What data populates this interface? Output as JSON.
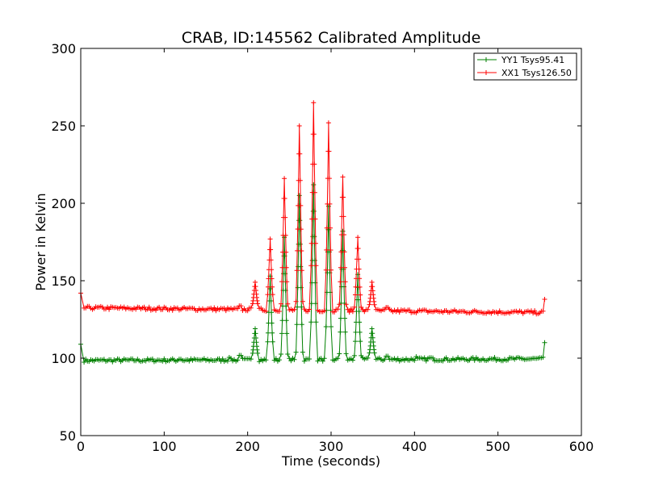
{
  "chart_data": {
    "type": "line",
    "title": "CRAB, ID:145562 Calibrated Amplitude",
    "xlabel": "Time (seconds)",
    "ylabel": "Power in Kelvin",
    "xlim": [
      0,
      600
    ],
    "ylim": [
      50,
      300
    ],
    "xticks": [
      0,
      100,
      200,
      300,
      400,
      500,
      600
    ],
    "yticks": [
      50,
      100,
      150,
      200,
      250,
      300
    ],
    "grid": false,
    "legend_position": "top-right",
    "series": [
      {
        "name": "YY1 Tsys95.41",
        "color": "#008000",
        "marker": "+",
        "x_start": 0,
        "x_end": 556,
        "x_step": 2,
        "baseline": 98.5,
        "baseline_end": 99.5,
        "edge_values": {
          "start": 109,
          "end": 110
        },
        "bumps": [
          {
            "x": 119,
            "value": 100.5
          },
          {
            "x": 178,
            "value": 100.5
          },
          {
            "x": 191,
            "value": 103
          },
          {
            "x": 367,
            "value": 102.5
          },
          {
            "x": 402,
            "value": 101
          },
          {
            "x": 419,
            "value": 101.5
          }
        ],
        "pulses": [
          {
            "x": 209,
            "value": 119
          },
          {
            "x": 227,
            "value": 153
          },
          {
            "x": 244,
            "value": 178
          },
          {
            "x": 262,
            "value": 205
          },
          {
            "x": 279,
            "value": 212
          },
          {
            "x": 297,
            "value": 198
          },
          {
            "x": 314,
            "value": 182
          },
          {
            "x": 332,
            "value": 154
          },
          {
            "x": 349,
            "value": 119
          }
        ]
      },
      {
        "name": "XX1 Tsys126.50",
        "color": "#ff0000",
        "marker": "+",
        "x_start": 0,
        "x_end": 556,
        "x_step": 2,
        "baseline": 132.5,
        "baseline_end": 129.5,
        "edge_values": {
          "start": 142,
          "end": 138
        },
        "bumps": [
          {
            "x": 191,
            "value": 135
          },
          {
            "x": 367,
            "value": 134
          }
        ],
        "pulses": [
          {
            "x": 209,
            "value": 149
          },
          {
            "x": 227,
            "value": 177
          },
          {
            "x": 244,
            "value": 216
          },
          {
            "x": 262,
            "value": 250
          },
          {
            "x": 279,
            "value": 265
          },
          {
            "x": 297,
            "value": 252
          },
          {
            "x": 314,
            "value": 217
          },
          {
            "x": 332,
            "value": 178
          },
          {
            "x": 349,
            "value": 149
          }
        ]
      }
    ]
  }
}
